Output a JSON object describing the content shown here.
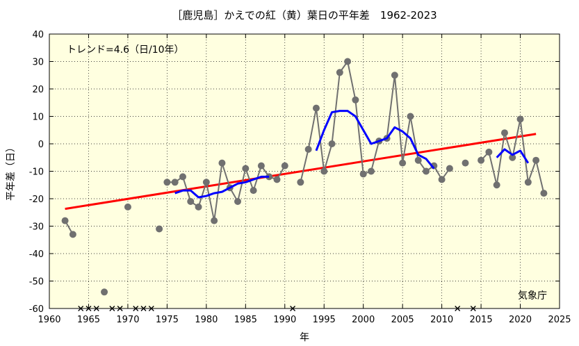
{
  "chart_data": {
    "type": "line",
    "title": "［鹿児島］かえでの紅（黄）葉日の平年差　1962-2023",
    "xlabel": "年",
    "ylabel": "平年差（日）",
    "xlim": [
      1960,
      2025
    ],
    "ylim": [
      -60,
      40
    ],
    "xticks": [
      1960,
      1965,
      1970,
      1975,
      1980,
      1985,
      1990,
      1995,
      2000,
      2005,
      2010,
      2015,
      2020,
      2025
    ],
    "yticks": [
      -60,
      -50,
      -40,
      -30,
      -20,
      -10,
      0,
      10,
      20,
      30,
      40
    ],
    "grid": true,
    "trend_label": "トレンド=4.6（日/10年）",
    "source_label": "気象庁",
    "colors": {
      "background": "#ffffe0",
      "observed": "#707070",
      "moving_average": "#0000ff",
      "trend": "#ff0000",
      "grid": "#000000"
    },
    "series": [
      {
        "kind": "observed",
        "points": [
          [
            1962,
            -28
          ],
          [
            1963,
            -33
          ],
          [
            1967,
            -54
          ],
          [
            1970,
            -23
          ],
          [
            1974,
            -31
          ],
          [
            1975,
            -14
          ],
          [
            1976,
            -14
          ],
          [
            1977,
            -12
          ],
          [
            1978,
            -21
          ],
          [
            1979,
            -23
          ],
          [
            1980,
            -14
          ],
          [
            1981,
            -28
          ],
          [
            1982,
            -7
          ],
          [
            1983,
            -16
          ],
          [
            1984,
            -21
          ],
          [
            1985,
            -9
          ],
          [
            1986,
            -17
          ],
          [
            1987,
            -8
          ],
          [
            1988,
            -12
          ],
          [
            1989,
            -13
          ],
          [
            1990,
            -8
          ],
          [
            1992,
            -14
          ],
          [
            1993,
            -2
          ],
          [
            1994,
            13
          ],
          [
            1995,
            -10
          ],
          [
            1996,
            0
          ],
          [
            1997,
            26
          ],
          [
            1998,
            30
          ],
          [
            1999,
            16
          ],
          [
            2000,
            -11
          ],
          [
            2001,
            -10
          ],
          [
            2002,
            1
          ],
          [
            2003,
            2
          ],
          [
            2004,
            25
          ],
          [
            2005,
            -7
          ],
          [
            2006,
            10
          ],
          [
            2007,
            -6
          ],
          [
            2008,
            -10
          ],
          [
            2009,
            -8
          ],
          [
            2010,
            -13
          ],
          [
            2011,
            -9
          ],
          [
            2013,
            -7
          ],
          [
            2015,
            -6
          ],
          [
            2016,
            -3
          ],
          [
            2017,
            -15
          ],
          [
            2018,
            4
          ],
          [
            2019,
            -5
          ],
          [
            2020,
            9
          ],
          [
            2021,
            -14
          ],
          [
            2022,
            -6
          ],
          [
            2023,
            -18
          ]
        ],
        "connected_segments": [
          [
            1962,
            1963
          ],
          [
            1975,
            1990
          ],
          [
            1992,
            2011
          ],
          [
            2015,
            2023
          ]
        ]
      },
      {
        "kind": "moving_average",
        "segments": [
          [
            [
              1976,
              -18
            ],
            [
              1977,
              -17
            ],
            [
              1978,
              -17
            ],
            [
              1979,
              -19.5
            ],
            [
              1980,
              -19
            ],
            [
              1981,
              -18
            ],
            [
              1982,
              -17.5
            ],
            [
              1983,
              -16
            ],
            [
              1984,
              -14.5
            ],
            [
              1985,
              -14
            ],
            [
              1986,
              -13
            ],
            [
              1987,
              -12
            ],
            [
              1988,
              -12
            ]
          ],
          [
            [
              1994,
              -2.5
            ],
            [
              1995,
              5
            ],
            [
              1996,
              11.5
            ],
            [
              1997,
              12
            ],
            [
              1998,
              12
            ],
            [
              1999,
              10
            ],
            [
              2000,
              5
            ],
            [
              2001,
              0
            ],
            [
              2002,
              1
            ],
            [
              2003,
              2
            ],
            [
              2004,
              6
            ],
            [
              2005,
              4.5
            ],
            [
              2006,
              2
            ],
            [
              2007,
              -4
            ],
            [
              2008,
              -5.5
            ],
            [
              2009,
              -9
            ]
          ],
          [
            [
              2017,
              -5
            ],
            [
              2018,
              -2
            ],
            [
              2019,
              -4
            ],
            [
              2020,
              -2.5
            ],
            [
              2021,
              -7
            ]
          ]
        ]
      },
      {
        "kind": "trend",
        "points": [
          [
            1962,
            -23.7
          ],
          [
            2022,
            3.6
          ]
        ]
      }
    ],
    "missing_years": [
      1964,
      1965,
      1966,
      1968,
      1969,
      1971,
      1972,
      1973,
      1991,
      2012,
      2014
    ]
  }
}
